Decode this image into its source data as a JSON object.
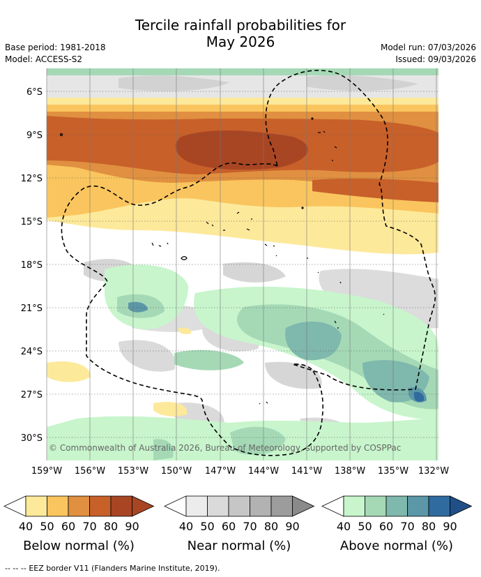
{
  "header": {
    "title_line1": "Tercile rainfall probabilities for",
    "title_line2": "May 2026",
    "base_period": "Base period: 1981-2018",
    "model": "Model: ACCESS-S2",
    "model_run": "Model run: 07/03/2026",
    "issued": "Issued: 09/03/2026"
  },
  "map": {
    "lat_labels": [
      "6°S",
      "9°S",
      "12°S",
      "15°S",
      "18°S",
      "21°S",
      "24°S",
      "27°S",
      "30°S"
    ],
    "lon_labels": [
      "159°W",
      "156°W",
      "153°W",
      "150°W",
      "147°W",
      "144°W",
      "141°W",
      "138°W",
      "135°W",
      "132°W"
    ],
    "copyright": "© Commonwealth of Australia 2026, Bureau of Meteorology, supported by COSPPac"
  },
  "colorbars": [
    {
      "title": "Below normal (%)",
      "ticks": [
        "40",
        "50",
        "60",
        "70",
        "80",
        "90"
      ],
      "colors": [
        "#fde99a",
        "#fac55e",
        "#e09040",
        "#c8602a",
        "#a84624",
        "#a84624"
      ]
    },
    {
      "title": "Near normal (%)",
      "ticks": [
        "40",
        "50",
        "60",
        "70",
        "80",
        "90"
      ],
      "colors": [
        "#ececec",
        "#dadada",
        "#c6c6c6",
        "#b2b2b2",
        "#9c9c9c",
        "#8a8a8a"
      ]
    },
    {
      "title": "Above normal (%)",
      "ticks": [
        "40",
        "50",
        "60",
        "70",
        "80",
        "90"
      ],
      "colors": [
        "#c8f5cc",
        "#a5d9b6",
        "#7fb8ac",
        "#5b97a6",
        "#2f6b9f",
        "#1f4f86"
      ]
    }
  ],
  "footer": {
    "legend_symbol": "-- -- --",
    "legend_text": "EEZ border V11 (Flanders Marine Institute, 2019)."
  }
}
